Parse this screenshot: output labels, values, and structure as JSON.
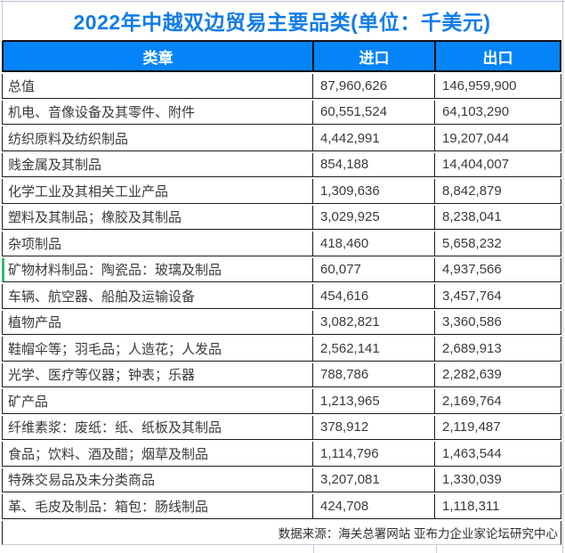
{
  "title": "2022年中越双边贸易主要品类(单位：千美元)",
  "table": {
    "headers": {
      "category": "类章",
      "import": "进口",
      "export": "出口"
    },
    "rows": [
      {
        "category": "总值",
        "import": "87,960,626",
        "export": "146,959,900",
        "highlighted": false
      },
      {
        "category": "机电、音像设备及其零件、附件",
        "import": "60,551,524",
        "export": "64,103,290",
        "highlighted": false
      },
      {
        "category": "纺织原料及纺织制品",
        "import": "4,442,991",
        "export": "19,207,044",
        "highlighted": false
      },
      {
        "category": "贱金属及其制品",
        "import": "854,188",
        "export": "14,404,007",
        "highlighted": false
      },
      {
        "category": "化学工业及其相关工业产品",
        "import": "1,309,636",
        "export": "8,842,879",
        "highlighted": false
      },
      {
        "category": "塑料及其制品；橡胶及其制品",
        "import": "3,029,925",
        "export": "8,238,041",
        "highlighted": false
      },
      {
        "category": "杂项制品",
        "import": "418,460",
        "export": "5,658,232",
        "highlighted": false
      },
      {
        "category": "矿物材料制品：陶瓷品：玻璃及制品",
        "import": "60,077",
        "export": "4,937,566",
        "highlighted": true
      },
      {
        "category": "车辆、航空器、船舶及运输设备",
        "import": "454,616",
        "export": "3,457,764",
        "highlighted": false
      },
      {
        "category": "植物产品",
        "import": "3,082,821",
        "export": "3,360,586",
        "highlighted": false
      },
      {
        "category": "鞋帽伞等；羽毛品；人造花；人发品",
        "import": "2,562,141",
        "export": "2,689,913",
        "highlighted": false
      },
      {
        "category": "光学、医疗等仪器；钟表；乐器",
        "import": "788,786",
        "export": "2,282,639",
        "highlighted": false
      },
      {
        "category": "矿产品",
        "import": "1,213,965",
        "export": "2,169,764",
        "highlighted": false
      },
      {
        "category": "纤维素浆：废纸：纸、纸板及其制品",
        "import": "378,912",
        "export": "2,119,487",
        "highlighted": false
      },
      {
        "category": "食品；饮料、酒及醋；烟草及制品",
        "import": "1,114,796",
        "export": "1,463,544",
        "highlighted": false
      },
      {
        "category": "特殊交易品及未分类商品",
        "import": "3,207,081",
        "export": "1,330,039",
        "highlighted": false
      },
      {
        "category": "革、毛皮及制品：箱包：肠线制品",
        "import": "424,708",
        "export": "1,118,311",
        "highlighted": false
      }
    ]
  },
  "footer": {
    "source": "数据来源：海关总署网站 亚布力企业家论坛研究中心"
  },
  "colors": {
    "header_bg": "#0584FA",
    "title_text": "#127CE8",
    "border_dark": "#1C1C1C",
    "highlight_green": "#36B96E",
    "gridline_light": "#C6CAD8"
  },
  "chart_data": {
    "type": "table",
    "title": "2022年中越双边贸易主要品类(单位：千美元)",
    "units": "千美元",
    "columns": [
      "类章",
      "进口",
      "出口"
    ],
    "rows": [
      [
        "总值",
        87960626,
        146959900
      ],
      [
        "机电、音像设备及其零件、附件",
        60551524,
        64103290
      ],
      [
        "纺织原料及纺织制品",
        4442991,
        19207044
      ],
      [
        "贱金属及其制品",
        854188,
        14404007
      ],
      [
        "化学工业及其相关工业产品",
        1309636,
        8842879
      ],
      [
        "塑料及其制品；橡胶及其制品",
        3029925,
        8238041
      ],
      [
        "杂项制品",
        418460,
        5658232
      ],
      [
        "矿物材料制品：陶瓷品：玻璃及制品",
        60077,
        4937566
      ],
      [
        "车辆、航空器、船舶及运输设备",
        454616,
        3457764
      ],
      [
        "植物产品",
        3082821,
        3360586
      ],
      [
        "鞋帽伞等；羽毛品；人造花；人发品",
        2562141,
        2689913
      ],
      [
        "光学、医疗等仪器；钟表；乐器",
        788786,
        2282639
      ],
      [
        "矿产品",
        1213965,
        2169764
      ],
      [
        "纤维素浆：废纸：纸、纸板及其制品",
        378912,
        2119487
      ],
      [
        "食品；饮料、酒及醋；烟草及制品",
        1114796,
        1463544
      ],
      [
        "特殊交易品及未分类商品",
        3207081,
        1330039
      ],
      [
        "革、毛皮及制品：箱包：肠线制品",
        424708,
        1118311
      ]
    ],
    "source": "数据来源：海关总署网站 亚布力企业家论坛研究中心"
  }
}
